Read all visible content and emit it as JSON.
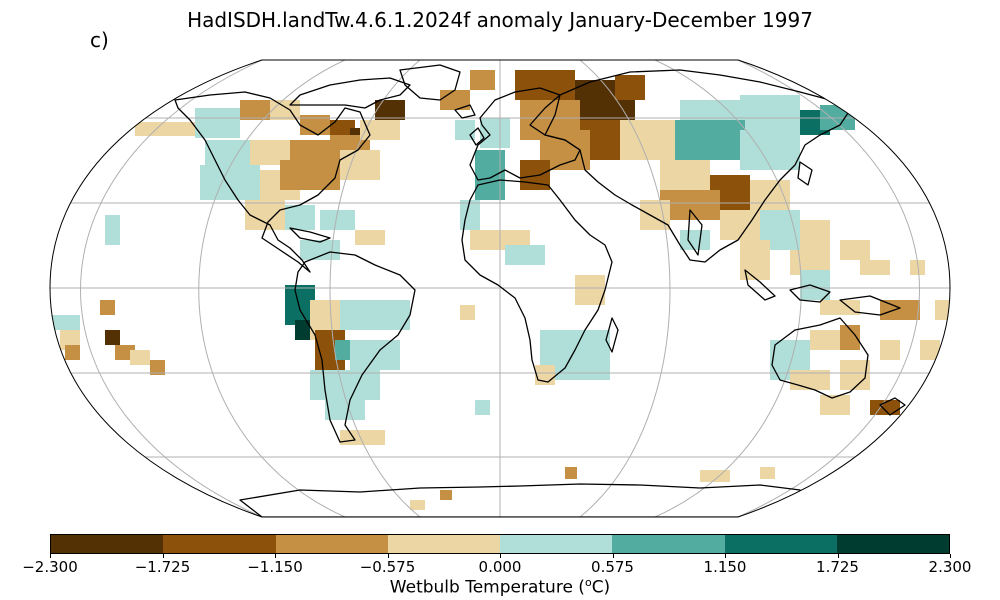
{
  "title": "HadISDH.landTw.4.6.1.2024f anomaly January-December 1997",
  "panel_label": "c)",
  "colorbar": {
    "ticks": [
      "−2.300",
      "−1.725",
      "−1.150",
      "−0.575",
      "0.000",
      "0.575",
      "1.150",
      "1.725",
      "2.300"
    ],
    "colors": [
      "#543005",
      "#8c510a",
      "#c58f44",
      "#ecd6a4",
      "#afdfd8",
      "#52aca0",
      "#0c6f63",
      "#003c30"
    ],
    "label_main": "Wetbulb Temperature (",
    "label_sup": "o",
    "label_tail": "C)"
  },
  "colors": {
    "land_coast": "#000000",
    "grid": "#b0b0b0"
  }
}
